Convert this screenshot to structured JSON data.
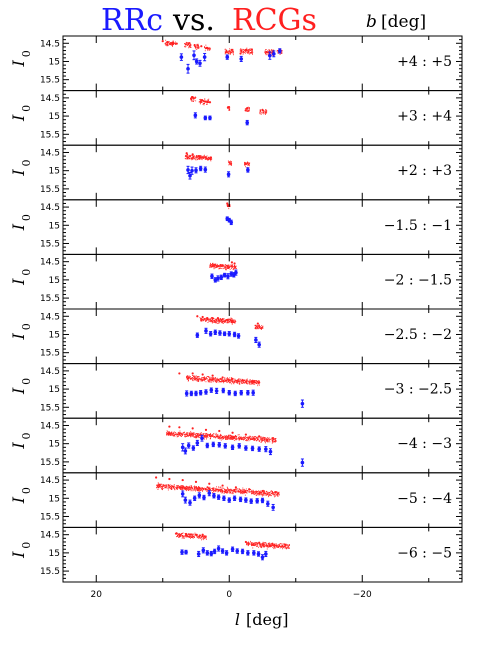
{
  "title": {
    "rrc": "RRc",
    "vs": "vs.",
    "rcgs": "RCGs",
    "b_label": "b",
    "b_unit": "[deg]",
    "rrc_color": "#1a1aff",
    "rcgs_color": "#ff2020"
  },
  "chart_data": {
    "type": "scatter",
    "xlabel": "l",
    "xunit": "[deg]",
    "ylabel": "I",
    "ylabel_sub": "0",
    "xlim": [
      25,
      -35
    ],
    "ylim": [
      14.3,
      15.8
    ],
    "y_inverted": true,
    "x_ticks": [
      20,
      0,
      -20
    ],
    "x_tick_labels": [
      "20",
      "0",
      "−20"
    ],
    "y_ticks": [
      14.5,
      15,
      15.5
    ],
    "y_tick_labels": [
      "14.5",
      "15",
      "15.5"
    ],
    "series": [
      {
        "name": "RRc",
        "color": "#1a1aff",
        "marker": "point-with-errorbar"
      },
      {
        "name": "RCGs",
        "color": "#ff2020",
        "marker": "dots"
      }
    ],
    "panels": [
      {
        "range": "+4 : +5",
        "rrc": [
          [
            7.2,
            14.88,
            0.09
          ],
          [
            6.2,
            15.2,
            0.12
          ],
          [
            5.3,
            14.83,
            0.12
          ],
          [
            4.9,
            15.0,
            0.07
          ],
          [
            4.4,
            15.05,
            0.08
          ],
          [
            3.7,
            14.88,
            0.1
          ],
          [
            0.3,
            14.88,
            0.06
          ],
          [
            -1.8,
            14.93,
            0.07
          ],
          [
            -6.1,
            14.84,
            0.1
          ],
          [
            -6.7,
            14.79,
            0.08
          ],
          [
            -7.6,
            14.71,
            0.06
          ]
        ],
        "rcg": [
          [
            10.0,
            14.44
          ],
          [
            9.3,
            14.47
          ],
          [
            8.4,
            14.5
          ],
          [
            7.9,
            14.51
          ],
          [
            6.1,
            14.51
          ],
          [
            5.2,
            14.55
          ],
          [
            4.2,
            14.58
          ],
          [
            3.3,
            14.63
          ],
          [
            0.4,
            14.72
          ],
          [
            -0.4,
            14.68
          ],
          [
            -1.7,
            14.78
          ],
          [
            -2.6,
            14.68
          ],
          [
            -3.4,
            14.67
          ],
          [
            -5.6,
            14.74
          ],
          [
            -6.6,
            14.71
          ],
          [
            -7.6,
            14.73
          ]
        ],
        "rcg_band": [
          [
            9.8,
            8.1,
            14.48
          ],
          [
            6.8,
            5.8,
            14.53
          ],
          [
            5.3,
            4.6,
            14.57
          ],
          [
            3.8,
            2.9,
            14.62
          ],
          [
            0.7,
            -0.6,
            14.72
          ],
          [
            -1.5,
            -3.5,
            14.7
          ],
          [
            -5.2,
            -6.8,
            14.73
          ],
          [
            -7.1,
            -7.9,
            14.72
          ]
        ]
      },
      {
        "range": "+3 : +4",
        "rrc": [
          [
            5.1,
            14.98,
            0.07
          ],
          [
            3.6,
            15.05,
            0.05
          ],
          [
            2.9,
            15.05,
            0.05
          ],
          [
            -2.7,
            15.18,
            0.06
          ]
        ],
        "rcg": [
          [
            5.6,
            14.48
          ],
          [
            4.1,
            14.56
          ],
          [
            2.9,
            14.62
          ],
          [
            0.2,
            14.77
          ],
          [
            -2.7,
            14.78
          ],
          [
            -5.0,
            14.83
          ]
        ],
        "rcg_band": [
          [
            5.9,
            5.1,
            14.5
          ],
          [
            4.6,
            3.0,
            14.58
          ],
          [
            0.3,
            0.0,
            14.77
          ],
          [
            -2.3,
            -3.0,
            14.8
          ],
          [
            -4.5,
            -5.6,
            14.85
          ]
        ]
      },
      {
        "range": "+2 : +3",
        "rrc": [
          [
            6.2,
            14.98,
            0.1
          ],
          [
            5.9,
            15.14,
            0.09
          ],
          [
            5.6,
            15.0,
            0.1
          ],
          [
            5.0,
            14.99,
            0.07
          ],
          [
            4.3,
            14.94,
            0.06
          ],
          [
            3.6,
            14.97,
            0.07
          ],
          [
            0.1,
            15.1,
            0.07
          ],
          [
            -2.8,
            14.98,
            0.06
          ]
        ],
        "rcg": [
          [
            6.4,
            14.52
          ],
          [
            5.5,
            14.55
          ],
          [
            4.6,
            14.6
          ],
          [
            3.6,
            14.63
          ],
          [
            2.9,
            14.67
          ],
          [
            0.0,
            14.77
          ],
          [
            -2.4,
            14.8
          ]
        ],
        "rcg_band": [
          [
            6.7,
            2.6,
            14.6
          ],
          [
            0.2,
            -0.3,
            14.78
          ],
          [
            -2.2,
            -3.0,
            14.8
          ]
        ]
      },
      {
        "range": "−1.5 : −1",
        "rrc": [
          [
            0.3,
            14.82,
            0.05
          ],
          [
            0.0,
            14.86,
            0.05
          ],
          [
            -0.3,
            14.92,
            0.06
          ]
        ],
        "rcg": [
          [
            0.3,
            14.4
          ],
          [
            0.2,
            14.47
          ],
          [
            0.0,
            14.44
          ]
        ],
        "rcg_band": [
          [
            0.4,
            -0.1,
            14.44
          ]
        ]
      },
      {
        "range": "−2 : −1.5",
        "rrc": [
          [
            2.6,
            14.9,
            0.06
          ],
          [
            2.1,
            15.0,
            0.06
          ],
          [
            1.7,
            14.96,
            0.07
          ],
          [
            1.2,
            14.93,
            0.06
          ],
          [
            0.7,
            14.87,
            0.05
          ],
          [
            0.2,
            14.9,
            0.07
          ],
          [
            -0.3,
            14.84,
            0.06
          ],
          [
            -0.7,
            14.86,
            0.06
          ],
          [
            -1.0,
            14.8,
            0.07
          ]
        ],
        "rcg": [
          [
            2.5,
            14.62
          ],
          [
            1.8,
            14.63
          ],
          [
            1.0,
            14.6
          ],
          [
            0.2,
            14.62
          ],
          [
            -0.4,
            14.52
          ],
          [
            -0.8,
            14.55
          ]
        ],
        "rcg_band": [
          [
            3.0,
            -1.0,
            14.6
          ]
        ]
      },
      {
        "range": "−2.5 : −2",
        "rrc": [
          [
            4.8,
            15.02,
            0.06
          ],
          [
            3.5,
            14.9,
            0.07
          ],
          [
            2.8,
            14.98,
            0.06
          ],
          [
            2.1,
            14.94,
            0.06
          ],
          [
            1.4,
            14.96,
            0.06
          ],
          [
            0.7,
            14.98,
            0.05
          ],
          [
            0.0,
            14.98,
            0.06
          ],
          [
            -0.8,
            15.0,
            0.06
          ],
          [
            -1.4,
            15.04,
            0.06
          ],
          [
            -4.0,
            15.15,
            0.07
          ],
          [
            -4.5,
            15.28,
            0.07
          ]
        ],
        "rcg": [
          [
            4.8,
            14.5
          ],
          [
            4.0,
            14.52
          ],
          [
            3.3,
            14.55
          ],
          [
            2.5,
            14.55
          ],
          [
            1.7,
            14.55
          ],
          [
            1.0,
            14.58
          ],
          [
            0.3,
            14.6
          ],
          [
            -0.5,
            14.62
          ],
          [
            -4.3,
            14.7
          ],
          [
            -4.8,
            14.83
          ]
        ],
        "rcg_band": [
          [
            4.5,
            -1.0,
            14.57
          ],
          [
            -3.8,
            -5.0,
            14.78
          ]
        ]
      },
      {
        "range": "−3 : −2.5",
        "rrc": [
          [
            6.4,
            15.12,
            0.07
          ],
          [
            5.7,
            15.12,
            0.06
          ],
          [
            5.0,
            15.12,
            0.06
          ],
          [
            4.3,
            15.1,
            0.06
          ],
          [
            3.5,
            15.08,
            0.06
          ],
          [
            2.7,
            15.03,
            0.06
          ],
          [
            1.9,
            15.05,
            0.07
          ],
          [
            0.9,
            15.04,
            0.06
          ],
          [
            0.0,
            15.1,
            0.06
          ],
          [
            -0.9,
            15.12,
            0.06
          ],
          [
            -1.8,
            15.1,
            0.06
          ],
          [
            -2.8,
            15.1,
            0.06
          ],
          [
            -3.6,
            15.1,
            0.07
          ],
          [
            -11.0,
            15.4,
            0.1
          ]
        ],
        "rcg": [
          [
            7.5,
            14.57
          ],
          [
            5.5,
            14.57
          ],
          [
            4.0,
            14.6
          ],
          [
            2.5,
            14.63
          ],
          [
            1.0,
            14.68
          ],
          [
            -0.5,
            14.72
          ],
          [
            -2.0,
            14.76
          ],
          [
            -3.5,
            14.8
          ],
          [
            -4.5,
            14.82
          ]
        ],
        "rcg_band": [
          [
            6.5,
            -4.5,
            14.68
          ]
        ]
      },
      {
        "range": "−4 : −3",
        "rrc": [
          [
            7.0,
            15.1,
            0.1
          ],
          [
            6.6,
            15.2,
            0.08
          ],
          [
            6.1,
            15.05,
            0.07
          ],
          [
            5.4,
            15.12,
            0.06
          ],
          [
            4.8,
            14.98,
            0.07
          ],
          [
            4.1,
            14.85,
            0.08
          ],
          [
            3.3,
            15.05,
            0.06
          ],
          [
            2.4,
            15.02,
            0.06
          ],
          [
            1.5,
            15.03,
            0.06
          ],
          [
            0.6,
            15.06,
            0.06
          ],
          [
            -0.5,
            15.1,
            0.06
          ],
          [
            -1.5,
            15.06,
            0.06
          ],
          [
            -2.5,
            15.12,
            0.06
          ],
          [
            -3.5,
            15.13,
            0.06
          ],
          [
            -4.5,
            15.15,
            0.06
          ],
          [
            -5.5,
            15.15,
            0.07
          ],
          [
            -6.2,
            15.22,
            0.08
          ],
          [
            -11.0,
            15.52,
            0.1
          ]
        ],
        "rcg": [
          [
            9.0,
            14.53
          ],
          [
            7.5,
            14.55
          ],
          [
            5.5,
            14.58
          ],
          [
            3.5,
            14.62
          ],
          [
            1.5,
            14.65
          ],
          [
            -0.5,
            14.7
          ],
          [
            -2.5,
            14.75
          ],
          [
            -4.5,
            14.8
          ],
          [
            -6.5,
            14.85
          ]
        ],
        "rcg_band": [
          [
            9.5,
            -7.0,
            14.7
          ]
        ]
      },
      {
        "range": "−5 : −4",
        "rrc": [
          [
            7.0,
            14.88,
            0.08
          ],
          [
            6.6,
            15.05,
            0.08
          ],
          [
            5.9,
            15.12,
            0.07
          ],
          [
            5.2,
            15.0,
            0.06
          ],
          [
            4.5,
            14.92,
            0.07
          ],
          [
            3.8,
            14.98,
            0.06
          ],
          [
            3.0,
            14.86,
            0.07
          ],
          [
            2.3,
            14.93,
            0.06
          ],
          [
            1.6,
            14.97,
            0.06
          ],
          [
            0.8,
            15.0,
            0.06
          ],
          [
            0.0,
            15.05,
            0.06
          ],
          [
            -0.8,
            15.0,
            0.06
          ],
          [
            -1.7,
            15.03,
            0.06
          ],
          [
            -2.5,
            15.05,
            0.06
          ],
          [
            -3.3,
            15.08,
            0.06
          ],
          [
            -4.2,
            15.07,
            0.06
          ],
          [
            -5.0,
            15.06,
            0.06
          ],
          [
            -5.8,
            15.15,
            0.07
          ],
          [
            -6.6,
            15.25,
            0.08
          ]
        ],
        "rcg": [
          [
            11.0,
            14.43
          ],
          [
            9.0,
            14.47
          ],
          [
            7.0,
            14.5
          ],
          [
            5.0,
            14.55
          ],
          [
            3.0,
            14.6
          ],
          [
            1.0,
            14.65
          ],
          [
            -1.0,
            14.7
          ],
          [
            -3.0,
            14.75
          ],
          [
            -5.0,
            14.8
          ],
          [
            -7.0,
            14.83
          ]
        ],
        "rcg_band": [
          [
            11.0,
            -7.5,
            14.65
          ]
        ]
      },
      {
        "range": "−6 : −5",
        "rrc": [
          [
            7.1,
            14.98,
            0.06
          ],
          [
            6.5,
            14.98,
            0.05
          ],
          [
            4.6,
            15.03,
            0.07
          ],
          [
            3.9,
            14.93,
            0.07
          ],
          [
            3.3,
            15.0,
            0.06
          ],
          [
            2.7,
            15.02,
            0.06
          ],
          [
            2.2,
            14.96,
            0.06
          ],
          [
            1.6,
            14.88,
            0.07
          ],
          [
            1.0,
            14.95,
            0.06
          ],
          [
            0.4,
            15.0,
            0.06
          ],
          [
            -0.5,
            14.9,
            0.06
          ],
          [
            -1.2,
            14.95,
            0.06
          ],
          [
            -2.0,
            14.96,
            0.06
          ],
          [
            -2.8,
            15.0,
            0.06
          ],
          [
            -3.7,
            15.0,
            0.06
          ],
          [
            -4.4,
            15.03,
            0.06
          ],
          [
            -5.0,
            15.12,
            0.07
          ],
          [
            -5.5,
            15.03,
            0.07
          ]
        ],
        "rcg": [
          [
            8.0,
            14.47
          ],
          [
            6.5,
            14.48
          ],
          [
            5.0,
            14.5
          ],
          [
            4.0,
            14.5
          ],
          [
            -2.5,
            14.7
          ],
          [
            -4.5,
            14.72
          ],
          [
            -6.5,
            14.75
          ],
          [
            -8.5,
            14.78
          ]
        ],
        "rcg_band": [
          [
            8.0,
            3.5,
            14.5
          ],
          [
            -2.5,
            -9.0,
            14.74
          ]
        ]
      }
    ]
  }
}
